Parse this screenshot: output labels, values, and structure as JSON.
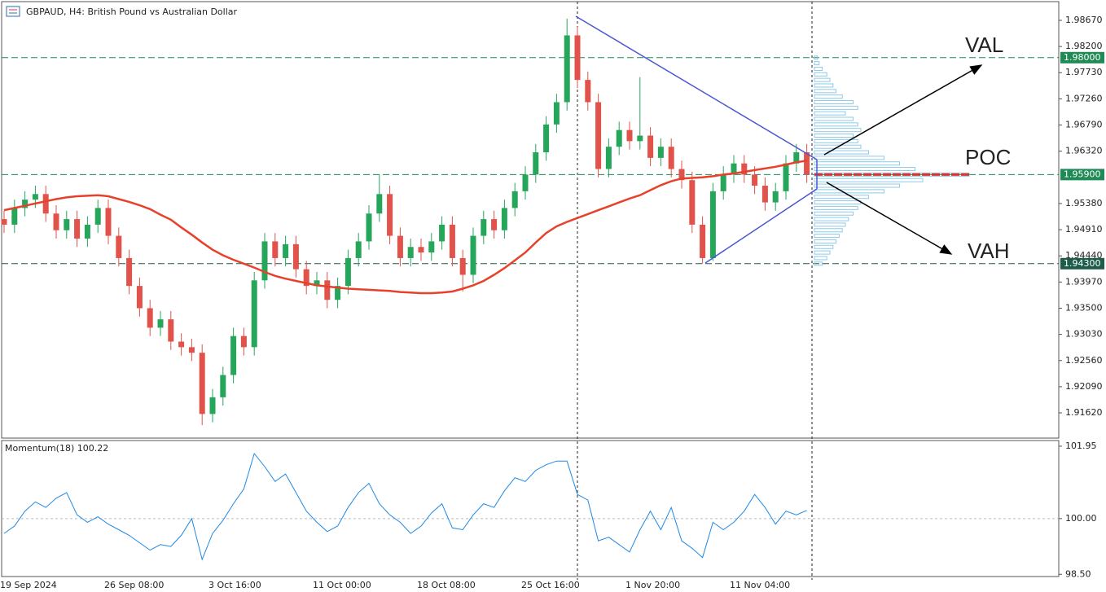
{
  "chart_data": [
    {
      "type": "candlestick",
      "title": "GBPAUD, H4:  British Pound vs Australian Dollar",
      "categories": [
        "19 Sep 2024",
        null,
        null,
        null,
        null,
        null,
        null,
        null,
        null,
        null,
        "26 Sep 08:00",
        null,
        null,
        null,
        null,
        null,
        null,
        null,
        null,
        null,
        "3 Oct 16:00",
        null,
        null,
        null,
        null,
        null,
        null,
        null,
        null,
        null,
        "11 Oct 00:00",
        null,
        null,
        null,
        null,
        null,
        null,
        null,
        null,
        null,
        "18 Oct 08:00",
        null,
        null,
        null,
        null,
        null,
        null,
        null,
        null,
        null,
        "25 Oct 16:00",
        null,
        null,
        null,
        null,
        null,
        null,
        null,
        null,
        null,
        "1 Nov 20:00",
        null,
        null,
        null,
        null,
        null,
        null,
        null,
        null,
        null,
        "11 Nov 04:00",
        null,
        null,
        null,
        null,
        null,
        null,
        null
      ],
      "open": [
        1.951,
        1.95,
        1.953,
        1.9545,
        1.9555,
        1.952,
        1.949,
        1.951,
        1.9475,
        1.95,
        1.953,
        1.948,
        1.944,
        1.939,
        1.935,
        1.9315,
        1.933,
        1.929,
        1.928,
        1.927,
        1.916,
        1.919,
        1.923,
        1.93,
        1.928,
        1.94,
        1.947,
        1.944,
        1.9465,
        1.942,
        1.939,
        1.94,
        1.9365,
        1.939,
        1.944,
        1.947,
        1.952,
        1.9555,
        1.948,
        1.944,
        1.946,
        1.945,
        1.947,
        1.95,
        1.944,
        1.941,
        1.948,
        1.951,
        1.949,
        1.953,
        1.956,
        1.959,
        1.963,
        1.968,
        1.972,
        1.984,
        1.976,
        1.972,
        1.96,
        1.964,
        1.967,
        1.965,
        1.966,
        1.962,
        1.964,
        1.96,
        1.958,
        1.95,
        1.944,
        1.956,
        1.959,
        1.961,
        1.959,
        1.957,
        1.954,
        1.956,
        1.961,
        1.963
      ],
      "high": [
        1.9525,
        1.9545,
        1.956,
        1.957,
        1.957,
        1.9535,
        1.9525,
        1.9525,
        1.9515,
        1.9545,
        1.9545,
        1.9495,
        1.9455,
        1.9405,
        1.9365,
        1.9345,
        1.9345,
        1.9305,
        1.9295,
        1.9285,
        1.9205,
        1.9245,
        1.9315,
        1.9315,
        1.9415,
        1.9485,
        1.9485,
        1.948,
        1.948,
        1.9435,
        1.9415,
        1.9415,
        1.9405,
        1.9455,
        1.9485,
        1.9535,
        1.959,
        1.957,
        1.9495,
        1.9475,
        1.9475,
        1.9485,
        1.9515,
        1.9515,
        1.9455,
        1.9495,
        1.9525,
        1.9525,
        1.9545,
        1.9575,
        1.9605,
        1.9645,
        1.9695,
        1.9735,
        1.987,
        1.9855,
        1.9775,
        1.9735,
        1.9655,
        1.9685,
        1.9685,
        1.9765,
        1.9675,
        1.9655,
        1.9655,
        1.9615,
        1.9595,
        1.9515,
        1.9575,
        1.9605,
        1.9625,
        1.9625,
        1.9605,
        1.9585,
        1.9575,
        1.9625,
        1.9645,
        1.9645
      ],
      "low": [
        1.9485,
        1.9485,
        1.9515,
        1.953,
        1.9505,
        1.9475,
        1.9475,
        1.946,
        1.946,
        1.9485,
        1.9465,
        1.9425,
        1.9375,
        1.9335,
        1.93,
        1.93,
        1.9275,
        1.9265,
        1.9255,
        1.914,
        1.9145,
        1.9175,
        1.9215,
        1.9265,
        1.9265,
        1.9385,
        1.9425,
        1.9425,
        1.9405,
        1.9375,
        1.9375,
        1.935,
        1.935,
        1.9375,
        1.9425,
        1.9455,
        1.9505,
        1.9465,
        1.9425,
        1.9425,
        1.9435,
        1.9435,
        1.9455,
        1.9425,
        1.938,
        1.9395,
        1.9465,
        1.9475,
        1.9475,
        1.9515,
        1.9545,
        1.9575,
        1.9615,
        1.9665,
        1.9705,
        1.9745,
        1.9705,
        1.9585,
        1.9585,
        1.9625,
        1.9635,
        1.9635,
        1.9605,
        1.9605,
        1.9585,
        1.9565,
        1.9485,
        1.943,
        1.9435,
        1.9545,
        1.9575,
        1.9575,
        1.9555,
        1.9525,
        1.9525,
        1.9545,
        1.9595,
        1.9575
      ],
      "close": [
        1.95,
        1.953,
        1.9545,
        1.9555,
        1.952,
        1.949,
        1.951,
        1.9475,
        1.95,
        1.953,
        1.948,
        1.944,
        1.939,
        1.935,
        1.9315,
        1.933,
        1.929,
        1.928,
        1.927,
        1.916,
        1.919,
        1.923,
        1.93,
        1.928,
        1.94,
        1.947,
        1.944,
        1.9465,
        1.942,
        1.939,
        1.94,
        1.9365,
        1.939,
        1.944,
        1.947,
        1.952,
        1.9555,
        1.948,
        1.944,
        1.946,
        1.945,
        1.947,
        1.95,
        1.944,
        1.941,
        1.948,
        1.951,
        1.949,
        1.953,
        1.956,
        1.959,
        1.963,
        1.968,
        1.972,
        1.984,
        1.976,
        1.972,
        1.96,
        1.964,
        1.967,
        1.965,
        1.966,
        1.962,
        1.964,
        1.96,
        1.958,
        1.95,
        1.944,
        1.956,
        1.959,
        1.961,
        1.959,
        1.957,
        1.954,
        1.956,
        1.961,
        1.963,
        1.959
      ],
      "up_color": "#26a65b",
      "down_color": "#e0524a",
      "moving_average": {
        "color": "#e8412b",
        "values": [
          1.9526,
          1.953,
          1.9534,
          1.9538,
          1.9542,
          1.9546,
          1.9549,
          1.9551,
          1.9552,
          1.9553,
          1.9551,
          1.9546,
          1.9541,
          1.9535,
          1.9528,
          1.9518,
          1.9509,
          1.9495,
          1.9482,
          1.9468,
          1.9455,
          1.9445,
          1.9437,
          1.943,
          1.9423,
          1.9415,
          1.9408,
          1.9403,
          1.9399,
          1.9395,
          1.9391,
          1.9389,
          1.9387,
          1.9385,
          1.9384,
          1.9383,
          1.9382,
          1.9381,
          1.9379,
          1.9378,
          1.9377,
          1.9377,
          1.9378,
          1.938,
          1.9385,
          1.9391,
          1.9399,
          1.941,
          1.9422,
          1.9436,
          1.945,
          1.9468,
          1.9485,
          1.9497,
          1.9505,
          1.9512,
          1.9519,
          1.9526,
          1.9533,
          1.954,
          1.9547,
          1.9553,
          1.9562,
          1.9571,
          1.9578,
          1.9583,
          1.9584,
          1.9585,
          1.9587,
          1.959,
          1.9592,
          1.9595,
          1.9598,
          1.9601,
          1.9604,
          1.9608,
          1.9612,
          1.9615
        ]
      },
      "volume_profile": {
        "color": "#8fc9e8",
        "poc_color": "#d9342b",
        "levels": [
          1.943,
          1.944,
          1.945,
          1.946,
          1.947,
          1.948,
          1.949,
          1.95,
          1.951,
          1.952,
          1.953,
          1.954,
          1.955,
          1.956,
          1.957,
          1.958,
          1.959,
          1.96,
          1.961,
          1.962,
          1.963,
          1.964,
          1.965,
          1.966,
          1.967,
          1.968,
          1.969,
          1.97,
          1.971,
          1.972,
          1.973,
          1.974,
          1.975,
          1.976,
          1.977,
          1.978,
          1.979,
          1.98
        ],
        "volumes": [
          5,
          8,
          10,
          12,
          14,
          16,
          18,
          20,
          22,
          25,
          28,
          30,
          35,
          45,
          55,
          70,
          100,
          65,
          55,
          45,
          35,
          30,
          28,
          25,
          30,
          28,
          25,
          20,
          28,
          25,
          18,
          14,
          12,
          10,
          8,
          5,
          3,
          2
        ]
      },
      "price_lines": [
        {
          "value": 1.98,
          "label": "1.98000",
          "color": "#1f8a55"
        },
        {
          "value": 1.959,
          "label": "1.95900",
          "color": "#1f8a55"
        },
        {
          "value": 1.943,
          "label": "1.94300",
          "color": "#1d5c4a"
        }
      ],
      "annotations": [
        "VAL",
        "POC",
        "VAH"
      ],
      "ylim": [
        1.91167,
        1.99006
      ],
      "yticks": [
        {
          "value": 1.9867,
          "label": "1.98670"
        },
        {
          "value": 1.982,
          "label": "1.98200"
        },
        {
          "value": 1.9773,
          "label": "1.97730"
        },
        {
          "value": 1.9726,
          "label": "1.97260"
        },
        {
          "value": 1.9679,
          "label": "1.96790"
        },
        {
          "value": 1.9632,
          "label": "1.96320"
        },
        {
          "value": 1.9538,
          "label": "1.95380"
        },
        {
          "value": 1.9491,
          "label": "1.94910"
        },
        {
          "value": 1.9444,
          "label": "1.94440"
        },
        {
          "value": 1.9397,
          "label": "1.93970"
        },
        {
          "value": 1.935,
          "label": "1.93500"
        },
        {
          "value": 1.9303,
          "label": "1.93030"
        },
        {
          "value": 1.9256,
          "label": "1.92560"
        },
        {
          "value": 1.9209,
          "label": "1.92090"
        },
        {
          "value": 1.9162,
          "label": "1.91620"
        }
      ]
    },
    {
      "type": "line",
      "title": "Momentum(18) 100.22",
      "color": "#1e88e5",
      "values": [
        99.6,
        99.8,
        100.2,
        100.45,
        100.3,
        100.55,
        100.7,
        100.1,
        99.9,
        100.05,
        99.85,
        99.7,
        99.55,
        99.35,
        99.15,
        99.3,
        99.25,
        99.55,
        100.0,
        98.9,
        99.6,
        99.95,
        100.4,
        100.8,
        101.75,
        101.4,
        101.0,
        101.2,
        100.7,
        100.2,
        99.9,
        99.65,
        99.8,
        100.3,
        100.7,
        100.95,
        100.4,
        100.1,
        99.9,
        99.6,
        99.8,
        100.15,
        100.4,
        99.75,
        99.7,
        100.1,
        100.4,
        100.3,
        100.75,
        101.1,
        101.0,
        101.3,
        101.45,
        101.55,
        101.55,
        100.65,
        100.5,
        99.4,
        99.5,
        99.3,
        99.1,
        99.7,
        100.2,
        99.7,
        100.3,
        99.4,
        99.2,
        98.95,
        99.9,
        99.7,
        99.9,
        100.2,
        100.65,
        100.3,
        99.85,
        100.2,
        100.1,
        100.22
      ],
      "ylim": [
        98.44,
        102.08
      ],
      "yticks": [
        {
          "value": 101.95,
          "label": "101.95"
        },
        {
          "value": 100,
          "label": "100.00"
        },
        {
          "value": 98.5,
          "label": "98.50"
        }
      ],
      "reference_line": {
        "value": 100,
        "label": "100.00"
      }
    }
  ]
}
